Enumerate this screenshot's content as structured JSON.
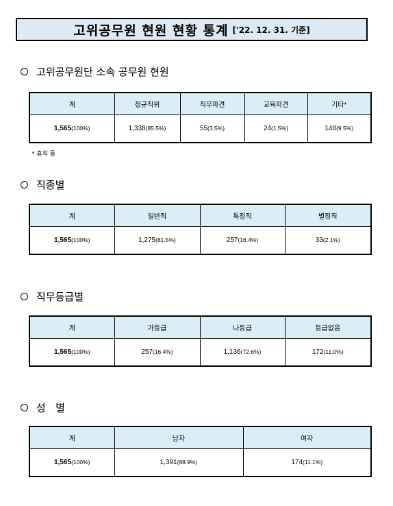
{
  "title": {
    "main": "고위공무원 현원 현황 통계",
    "sub": "['22. 12. 31. 기준]"
  },
  "sections": {
    "affiliation": {
      "heading": "고위공무원단 소속 공무원 현원",
      "headers": [
        "계",
        "정규직위",
        "직무파견",
        "교육파견",
        "기타*"
      ],
      "cells": [
        {
          "value": "1,565",
          "pct": "(100%)"
        },
        {
          "value": "1,338",
          "pct": "(85.5%)"
        },
        {
          "value": "55",
          "pct": "(3.5%)"
        },
        {
          "value": "24",
          "pct": "(1.5%)"
        },
        {
          "value": "148",
          "pct": "(9.5%)"
        }
      ],
      "note": "* 휴직 등"
    },
    "job_type": {
      "heading": "직종별",
      "headers": [
        "계",
        "일반직",
        "특정직",
        "별정직"
      ],
      "cells": [
        {
          "value": "1,565",
          "pct": "(100%)"
        },
        {
          "value": "1,275",
          "pct": "(81.5%)"
        },
        {
          "value": "257",
          "pct": "(16.4%)"
        },
        {
          "value": "33",
          "pct": "(2.1%)"
        }
      ]
    },
    "grade": {
      "heading": "직무등급별",
      "headers": [
        "계",
        "가등급",
        "나등급",
        "등급없음"
      ],
      "cells": [
        {
          "value": "1,565",
          "pct": "(100%)"
        },
        {
          "value": "257",
          "pct": "(16.4%)"
        },
        {
          "value": "1,136",
          "pct": "(72.6%)"
        },
        {
          "value": "172",
          "pct": "(11.0%)"
        }
      ]
    },
    "gender": {
      "heading": "성   별",
      "headers": [
        "계",
        "남자",
        "여자"
      ],
      "cells": [
        {
          "value": "1,565",
          "pct": "(100%)"
        },
        {
          "value": "1,391",
          "pct": "(88.9%)"
        },
        {
          "value": "174",
          "pct": "(11.1%)"
        }
      ]
    }
  }
}
